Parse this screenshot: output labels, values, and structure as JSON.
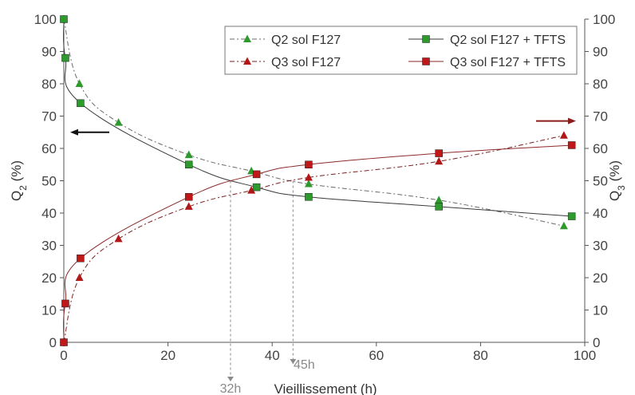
{
  "chart_data": {
    "type": "line",
    "xlabel": "Vieillissement (h)",
    "ylabel_left": "Q2 (%)",
    "ylabel_right": "Q3 (%)",
    "xlim": [
      0,
      100
    ],
    "ylim": [
      0,
      100
    ],
    "x_ticks": [
      0,
      20,
      40,
      60,
      80,
      100
    ],
    "y_ticks": [
      0,
      10,
      20,
      30,
      40,
      50,
      60,
      70,
      80,
      90,
      100
    ],
    "grid": false,
    "legend_position": "top-right",
    "series": [
      {
        "name": "Q2 sol F127",
        "marker": "triangle",
        "line": "dashed",
        "color": "#2e9a2e",
        "line_color": "#6a6a6a",
        "points": [
          [
            0,
            100
          ],
          [
            3,
            80
          ],
          [
            10.5,
            68
          ],
          [
            24,
            58
          ],
          [
            36,
            53
          ],
          [
            47,
            49
          ],
          [
            72,
            44
          ],
          [
            96,
            36
          ]
        ]
      },
      {
        "name": "Q3 sol F127",
        "marker": "triangle",
        "line": "dashed",
        "color": "#b01818",
        "line_color": "#7a2020",
        "points": [
          [
            0,
            0
          ],
          [
            3,
            20
          ],
          [
            10.5,
            32
          ],
          [
            24,
            42
          ],
          [
            36,
            47
          ],
          [
            47,
            51
          ],
          [
            72,
            56
          ],
          [
            96,
            64
          ]
        ]
      },
      {
        "name": "Q2 sol F127 + TFTS",
        "marker": "square",
        "line": "solid",
        "color": "#2e9a2e",
        "line_color": "#3a3a3a",
        "points": [
          [
            0,
            100
          ],
          [
            0.3,
            88
          ],
          [
            3.2,
            74
          ],
          [
            24,
            55
          ],
          [
            37,
            48
          ],
          [
            47,
            45
          ],
          [
            72,
            42
          ],
          [
            97.5,
            39
          ]
        ]
      },
      {
        "name": "Q3 sol F127 + TFTS",
        "marker": "square",
        "line": "solid",
        "color": "#c01818",
        "line_color": "#8a2a2a",
        "points": [
          [
            0,
            0
          ],
          [
            0.3,
            12
          ],
          [
            3.2,
            26
          ],
          [
            24,
            45
          ],
          [
            37,
            52
          ],
          [
            47,
            55
          ],
          [
            72,
            58.5
          ],
          [
            97.5,
            61
          ]
        ]
      }
    ],
    "annotations": [
      {
        "text": "32h",
        "x": 32,
        "type": "vline"
      },
      {
        "text": "45h",
        "x": 44,
        "type": "vline"
      }
    ],
    "arrows": [
      {
        "axis": "left",
        "y": 65
      },
      {
        "axis": "right",
        "y": 68.5
      }
    ]
  }
}
